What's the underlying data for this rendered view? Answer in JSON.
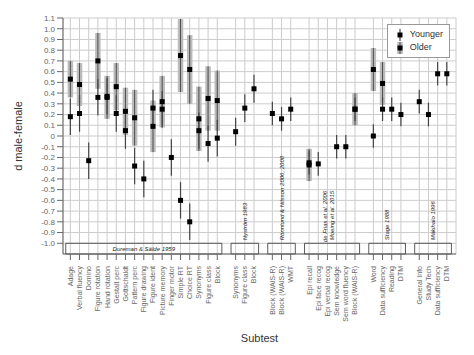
{
  "chart_data": {
    "type": "scatter",
    "xlabel": "Subtest",
    "ylabel": "d male-female",
    "x": [
      0,
      1,
      2,
      3,
      4,
      5,
      6,
      7,
      8,
      9,
      10,
      11,
      12,
      13,
      14,
      15,
      16,
      18,
      19,
      20,
      22,
      23,
      24,
      26,
      27,
      28,
      29,
      30,
      31,
      33,
      34,
      35,
      36,
      38,
      39,
      40,
      41
    ],
    "xlim": [
      -0.8,
      42.0
    ],
    "xticks": [
      {
        "value": 0,
        "label": "Adage"
      },
      {
        "value": 1,
        "label": "Verbal fluency"
      },
      {
        "value": 2,
        "label": "Domino"
      },
      {
        "value": 3,
        "label": "Figure rotation"
      },
      {
        "value": 4,
        "label": "Hand rotation"
      },
      {
        "value": 5,
        "label": "Gestalt perc"
      },
      {
        "value": 6,
        "label": "Gottschaldt"
      },
      {
        "value": 7,
        "label": "Pattern perc"
      },
      {
        "value": 8,
        "label": "Figure drawing"
      },
      {
        "value": 9,
        "label": "Figure ident"
      },
      {
        "value": 10,
        "label": "Picture memory"
      },
      {
        "value": 11,
        "label": "Finger motor"
      },
      {
        "value": 12,
        "label": "Simple RT"
      },
      {
        "value": 13,
        "label": "Choice RT"
      },
      {
        "value": 14,
        "label": "Synonyms"
      },
      {
        "value": 15,
        "label": "Figure class"
      },
      {
        "value": 16,
        "label": "Block"
      },
      {
        "value": 18,
        "label": "Synonyms"
      },
      {
        "value": 19,
        "label": "Figure class"
      },
      {
        "value": 20,
        "label": "Block"
      },
      {
        "value": 22,
        "label": "Block (WAIS-R)"
      },
      {
        "value": 23,
        "label": "Block (WAIS-R)"
      },
      {
        "value": 24,
        "label": "WMT"
      },
      {
        "value": 26,
        "label": "Epi recall"
      },
      {
        "value": 27,
        "label": "Epi face recog"
      },
      {
        "value": 28,
        "label": "Epi verbal recog"
      },
      {
        "value": 29,
        "label": "Sem knowledge"
      },
      {
        "value": 30,
        "label": "Sem word fluency"
      },
      {
        "value": 31,
        "label": "Block (WAIS-R)"
      },
      {
        "value": 33,
        "label": "Word"
      },
      {
        "value": 34,
        "label": "Data sufficiency"
      },
      {
        "value": 35,
        "label": "Reading"
      },
      {
        "value": 36,
        "label": "DTM"
      },
      {
        "value": 38,
        "label": "General Info"
      },
      {
        "value": 39,
        "label": "Study Tech"
      },
      {
        "value": 40,
        "label": "Data sufficiency"
      },
      {
        "value": 41,
        "label": "DTM"
      }
    ],
    "ylim": [
      -1.1,
      1.1
    ],
    "yticks": [
      {
        "value": -1.0,
        "label": "-1.0"
      },
      -0.9,
      -0.8,
      -0.7,
      -0.6,
      -0.5,
      -0.4,
      -0.3,
      -0.2,
      -0.1,
      0,
      0.1,
      0.2,
      0.3,
      0.4,
      0.5,
      0.6,
      0.7,
      0.8,
      0.9,
      {
        "value": 1.0,
        "label": "1.0"
      },
      1.1
    ],
    "grid": true,
    "legend": "upper right",
    "series": [
      {
        "name": "Younger",
        "color": "#444444",
        "marker": "square",
        "values": [
          0.18,
          0.21,
          -0.23,
          0.36,
          0.37,
          0.21,
          0.05,
          -0.28,
          -0.4,
          0.26,
          0.25,
          -0.2,
          -0.6,
          -0.8,
          0.05,
          -0.07,
          -0.02,
          0.04,
          0.26,
          0.44,
          0.21,
          0.16,
          0.25,
          -0.25,
          -0.26,
          null,
          -0.1,
          -0.1,
          0.25,
          0,
          0.25,
          0.25,
          0.2,
          0.32,
          0.2,
          0.58,
          0.58
        ],
        "errors": [
          0.17,
          0.17,
          0.17,
          0.17,
          0.17,
          0.17,
          0.17,
          0.17,
          0.17,
          0.17,
          0.17,
          0.17,
          0.17,
          0.17,
          0.17,
          0.17,
          0.17,
          0.13,
          0.13,
          0.13,
          0.11,
          0.11,
          0.11,
          0.11,
          0.11,
          null,
          0.11,
          0.11,
          0.11,
          0.11,
          0.11,
          0.11,
          0.11,
          0.11,
          0.11,
          0.11,
          0.11
        ]
      },
      {
        "name": "Older",
        "color": "#bbbbbb",
        "marker": "square",
        "values": [
          0.53,
          0.48,
          null,
          0.7,
          0.36,
          0.46,
          0.23,
          0.17,
          null,
          0.09,
          0.32,
          null,
          0.75,
          0.62,
          0.16,
          0.35,
          0.33,
          null,
          null,
          null,
          null,
          null,
          null,
          -0.27,
          null,
          null,
          null,
          null,
          0.25,
          0.62,
          0.49,
          null,
          null,
          null,
          null,
          null,
          null
        ],
        "errors": [
          0.17,
          0.2,
          null,
          0.26,
          0.2,
          0.22,
          0.22,
          0.26,
          null,
          0.24,
          0.24,
          null,
          0.34,
          0.32,
          0.3,
          0.3,
          0.28,
          null,
          null,
          null,
          null,
          null,
          null,
          0.15,
          null,
          null,
          null,
          null,
          0.15,
          0.2,
          0.2,
          null,
          null,
          null,
          null,
          null,
          null
        ]
      }
    ],
    "groups": [
      {
        "label": "Dureman & Sälde 1959",
        "x0": -0.5,
        "x1": 16.5
      },
      {
        "label": "Nyström 1983",
        "x0": 17.5,
        "x1": 20.5
      },
      {
        "label": "Rönnlund & Nilsson 2006, 2008",
        "x0": 21.5,
        "x1": 24.5
      },
      {
        "label": "Moeing et al. 2015",
        "x0": 25.5,
        "x1": 31.5
      },
      {
        "label": "Stage 1988",
        "x0": 32.5,
        "x1": 36.5
      },
      {
        "label": "Mäkihalo 1996",
        "x0": 37.5,
        "x1": 41.5
      }
    ],
    "annotations": [
      {
        "text": "de Frias et al. 2006",
        "x": 27.5,
        "y": -0.75
      }
    ]
  }
}
